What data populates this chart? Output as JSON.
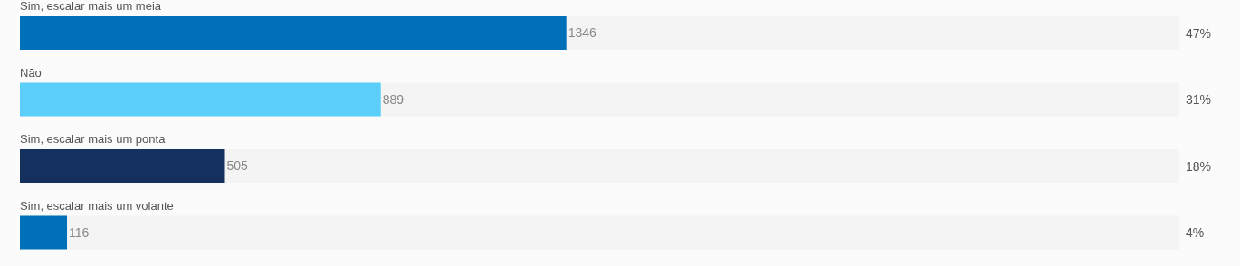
{
  "chart_data": {
    "type": "bar",
    "orientation": "horizontal",
    "categories": [
      "Sim, escalar mais um meia",
      "Não",
      "Sim, escalar mais um ponta",
      "Sim, escalar mais um volante"
    ],
    "values": [
      1346,
      889,
      505,
      116
    ],
    "colors": [
      "#0070b8",
      "#5bcffa",
      "#14305f",
      "#0070b8"
    ],
    "xlim": [
      0,
      2856
    ],
    "data_labels": true,
    "tick_labels": "y",
    "grid": false,
    "legend": false,
    "annotations": [
      "47%",
      "31%",
      "18%",
      "4%"
    ]
  }
}
